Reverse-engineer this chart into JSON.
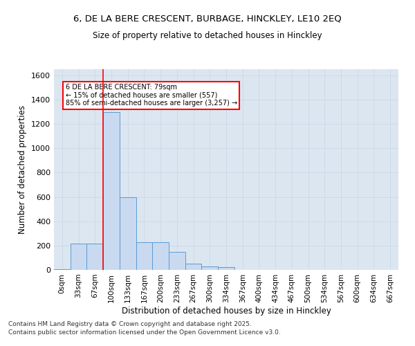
{
  "title": "6, DE LA BERE CRESCENT, BURBAGE, HINCKLEY, LE10 2EQ",
  "subtitle": "Size of property relative to detached houses in Hinckley",
  "xlabel": "Distribution of detached houses by size in Hinckley",
  "ylabel": "Number of detached properties",
  "annotation_line1": "6 DE LA BERE CRESCENT: 79sqm",
  "annotation_line2": "← 15% of detached houses are smaller (557)",
  "annotation_line3": "85% of semi-detached houses are larger (3,257) →",
  "bar_labels": [
    "0sqm",
    "33sqm",
    "67sqm",
    "100sqm",
    "133sqm",
    "167sqm",
    "200sqm",
    "233sqm",
    "267sqm",
    "300sqm",
    "334sqm",
    "367sqm",
    "400sqm",
    "434sqm",
    "467sqm",
    "500sqm",
    "534sqm",
    "567sqm",
    "600sqm",
    "634sqm",
    "667sqm"
  ],
  "bar_values": [
    5,
    215,
    215,
    1295,
    600,
    230,
    230,
    150,
    50,
    30,
    20,
    0,
    0,
    0,
    0,
    0,
    0,
    0,
    0,
    0,
    0
  ],
  "bar_color": "#c9d9f0",
  "bar_edge_color": "#5b9bd5",
  "vline_x": 2.5,
  "vline_color": "red",
  "annotation_box_color": "red",
  "grid_color": "#c8d4e8",
  "background_color": "#dce6f1",
  "ylim": [
    0,
    1650
  ],
  "yticks": [
    0,
    200,
    400,
    600,
    800,
    1000,
    1200,
    1400,
    1600
  ],
  "footer": "Contains HM Land Registry data © Crown copyright and database right 2025.\nContains public sector information licensed under the Open Government Licence v3.0."
}
